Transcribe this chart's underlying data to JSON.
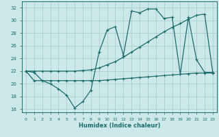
{
  "xlabel": "Humidex (Indice chaleur)",
  "bg_color": "#cce8e8",
  "grid_color": "#aad0d0",
  "line_color": "#1a6b6b",
  "xlim": [
    -0.5,
    23.5
  ],
  "ylim": [
    15.5,
    33
  ],
  "yticks": [
    16,
    18,
    20,
    22,
    24,
    26,
    28,
    30,
    32
  ],
  "xticks": [
    0,
    1,
    2,
    3,
    4,
    5,
    6,
    7,
    8,
    9,
    10,
    11,
    12,
    13,
    14,
    15,
    16,
    17,
    18,
    19,
    20,
    21,
    22,
    23
  ],
  "series1_x": [
    0,
    1,
    2,
    3,
    4,
    5,
    6,
    7,
    8,
    9,
    10,
    11,
    12,
    13,
    14,
    15,
    16,
    17,
    18,
    19,
    20,
    21,
    22,
    23
  ],
  "series1_y": [
    22.0,
    21.8,
    20.5,
    20.0,
    19.2,
    18.2,
    16.2,
    17.2,
    19.0,
    25.0,
    28.5,
    29.0,
    24.5,
    31.5,
    31.2,
    31.8,
    31.8,
    30.3,
    30.5,
    21.5,
    30.5,
    23.8,
    21.8,
    21.8
  ],
  "series2_x": [
    0,
    1,
    2,
    3,
    4,
    5,
    6,
    7,
    8,
    9,
    10,
    11,
    12,
    13,
    14,
    15,
    16,
    17,
    18,
    19,
    20,
    21,
    22,
    23
  ],
  "series2_y": [
    22.0,
    22.0,
    22.0,
    22.0,
    22.0,
    22.0,
    22.0,
    22.1,
    22.2,
    22.5,
    23.0,
    23.5,
    24.2,
    25.0,
    25.8,
    26.6,
    27.4,
    28.2,
    28.9,
    29.5,
    30.2,
    30.8,
    31.0,
    21.8
  ],
  "series3_x": [
    0,
    1,
    2,
    3,
    4,
    5,
    6,
    7,
    8,
    9,
    10,
    11,
    12,
    13,
    14,
    15,
    16,
    17,
    18,
    19,
    20,
    21,
    22,
    23
  ],
  "series3_y": [
    22.0,
    20.5,
    20.5,
    20.5,
    20.5,
    20.5,
    20.5,
    20.5,
    20.5,
    20.5,
    20.6,
    20.7,
    20.8,
    20.9,
    21.0,
    21.1,
    21.2,
    21.3,
    21.4,
    21.5,
    21.6,
    21.7,
    21.7,
    21.7
  ]
}
